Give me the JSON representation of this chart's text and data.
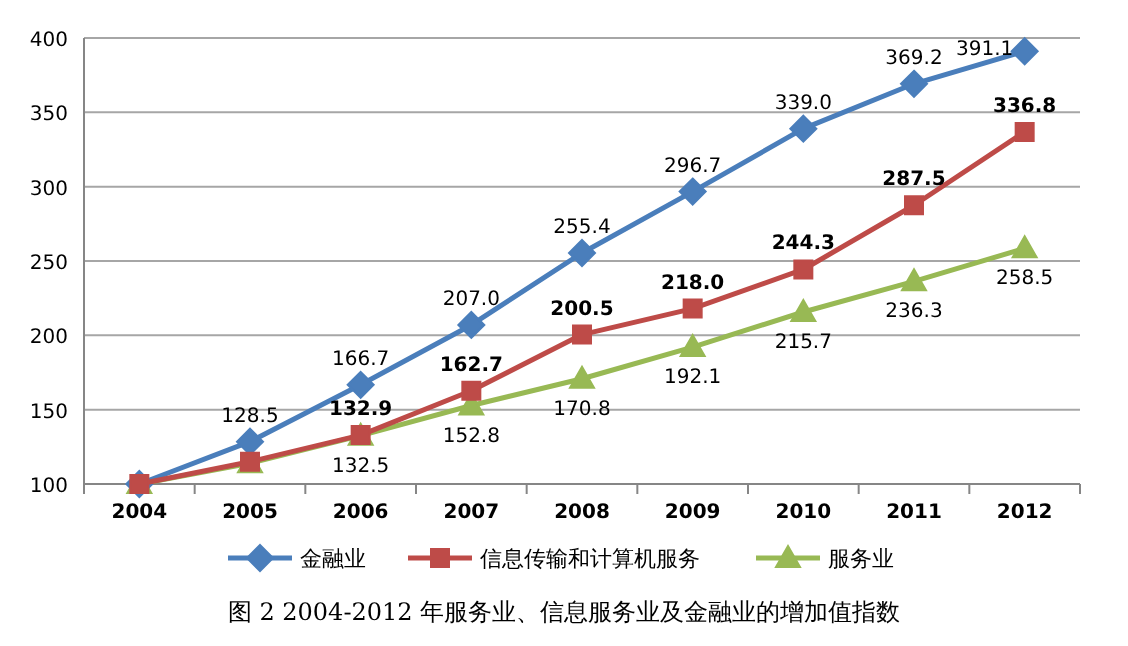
{
  "chart_data": {
    "type": "line",
    "title": "图 2  2004-2012 年服务业、信息服务业及金融业的增加值指数",
    "categories": [
      "2004",
      "2005",
      "2006",
      "2007",
      "2008",
      "2009",
      "2010",
      "2011",
      "2012"
    ],
    "ylim": [
      100,
      400
    ],
    "yticks": [
      100,
      150,
      200,
      250,
      300,
      350,
      400
    ],
    "grid": "y",
    "legend": "bottom",
    "series": [
      {
        "name": "金融业",
        "color": "#4a7ebb",
        "marker": "diamond",
        "values": [
          100,
          128.5,
          166.7,
          207.0,
          255.4,
          296.7,
          339.0,
          369.2,
          391.1
        ],
        "value_labels": [
          null,
          "128.5",
          "166.7",
          "207.0",
          "255.4",
          "296.7",
          "339.0",
          "369.2",
          "391.1"
        ]
      },
      {
        "name": "信息传输和计算机服务",
        "color": "#be4b48",
        "marker": "square",
        "values": [
          100,
          115,
          132.9,
          162.7,
          200.5,
          218.0,
          244.3,
          287.5,
          336.8
        ],
        "value_labels": [
          null,
          null,
          "132.9",
          "162.7",
          "200.5",
          "218.0",
          "244.3",
          "287.5",
          "336.8"
        ]
      },
      {
        "name": "服务业",
        "color": "#98b954",
        "marker": "triangle",
        "values": [
          100,
          114,
          132.5,
          152.8,
          170.8,
          192.1,
          215.7,
          236.3,
          258.5
        ],
        "value_labels": [
          null,
          null,
          "132.5",
          "152.8",
          "170.8",
          "192.1",
          "215.7",
          "236.3",
          "258.5"
        ]
      }
    ]
  }
}
